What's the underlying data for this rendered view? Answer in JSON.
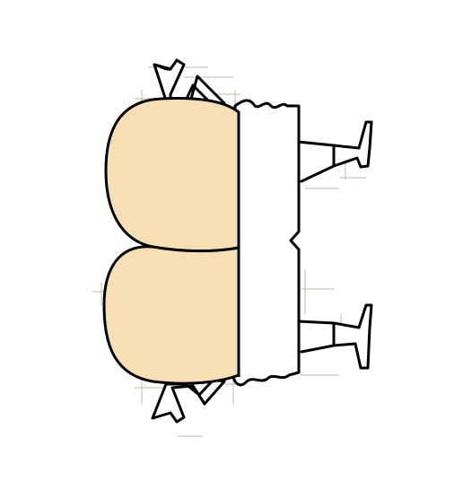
{
  "canvas": {
    "background": "#ffffff"
  },
  "palette": {
    "skin": "#f6dfb2",
    "outline": "#000000",
    "garment": "#ffffff",
    "sketch_lines": "#9a7a62"
  },
  "figure": {
    "subject": "cartoon-character-top-down",
    "parts": [
      "left-buttock",
      "right-buttock",
      "waistband",
      "upper-legs",
      "lower-legs",
      "feet"
    ]
  }
}
